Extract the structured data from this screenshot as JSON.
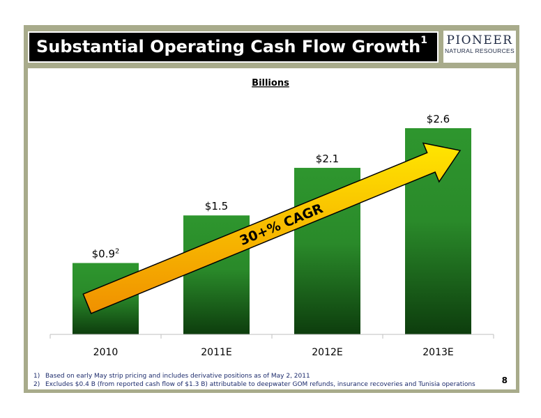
{
  "slide": {
    "title": "Substantial Operating Cash Flow Growth",
    "title_sup": "1",
    "page_number": "8"
  },
  "logo": {
    "main": "PIONEER",
    "sub": "NATURAL RESOURCES"
  },
  "footnotes": [
    {
      "num": "1)",
      "text": "Based on early May strip pricing and includes derivative positions as of May 2, 2011"
    },
    {
      "num": "2)",
      "text": "Excludes $0.4 B (from reported cash flow of $1.3 B) attributable to deepwater GOM refunds, insurance recoveries and Tunisia operations"
    }
  ],
  "colors": {
    "bar_top": "#2e962e",
    "bar_bottom": "#0d3d0d",
    "arrow_light": "#ffe600",
    "arrow_dark": "#f09000",
    "frame": "#a8ab8b"
  },
  "chart_data": {
    "type": "bar",
    "subtitle": "Billions",
    "categories": [
      "2010",
      "2011E",
      "2012E",
      "2013E"
    ],
    "values": [
      0.9,
      1.5,
      2.1,
      2.6
    ],
    "data_labels": [
      "$0.9",
      "$1.5",
      "$2.1",
      "$2.6"
    ],
    "data_label_sups": [
      "2",
      "",
      "",
      ""
    ],
    "ylim": [
      0,
      2.6
    ],
    "grid": false,
    "annotation": "30+% CAGR"
  }
}
